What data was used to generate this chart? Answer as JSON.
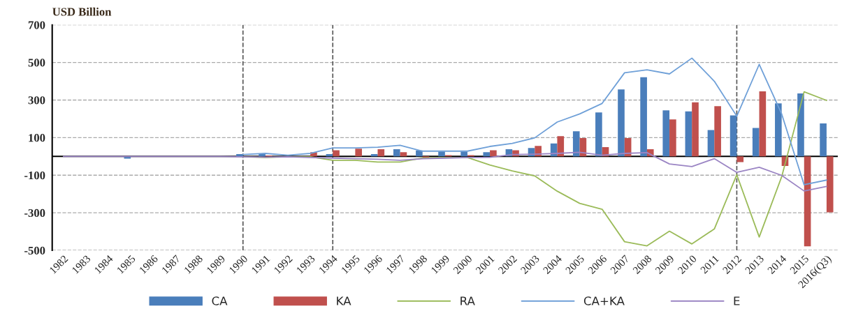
{
  "chart_data": {
    "type": "bar",
    "ylabel": "USD Billion",
    "categories": [
      "1982",
      "1983",
      "1984",
      "1985",
      "1986",
      "1987",
      "1988",
      "1989",
      "1990",
      "1991",
      "1992",
      "1993",
      "1994",
      "1995",
      "1996",
      "1997",
      "1998",
      "1999",
      "2000",
      "2001",
      "2002",
      "2003",
      "2004",
      "2005",
      "2006",
      "2007",
      "2008",
      "2009",
      "2010",
      "2011",
      "2012",
      "2013",
      "2014",
      "2015",
      "2016(Q3)"
    ],
    "series": [
      {
        "name": "CA",
        "color": "#4a7ebb",
        "values": [
          null,
          null,
          null,
          -12,
          null,
          null,
          null,
          null,
          12,
          13,
          null,
          null,
          12,
          null,
          12,
          38,
          32,
          26,
          26,
          22,
          38,
          45,
          69,
          134,
          234,
          356,
          421,
          245,
          240,
          140,
          218,
          151,
          282,
          335,
          176
        ]
      },
      {
        "name": "KA",
        "color": "#c0504d",
        "values": [
          null,
          null,
          null,
          null,
          null,
          null,
          null,
          null,
          null,
          5,
          null,
          22,
          33,
          41,
          38,
          22,
          -6,
          7,
          7,
          33,
          33,
          56,
          108,
          98,
          49,
          98,
          38,
          197,
          288,
          267,
          -30,
          346,
          -51,
          -479,
          -298
        ]
      },
      {
        "name": "RA",
        "type": "line",
        "color": "#9bbb59",
        "values": [
          null,
          null,
          null,
          null,
          null,
          null,
          null,
          null,
          -2,
          -6,
          -2,
          -2,
          -21,
          -21,
          -30,
          -30,
          -9,
          -6,
          -6,
          -46,
          -77,
          -104,
          -185,
          -250,
          -281,
          -454,
          -476,
          -398,
          -466,
          -386,
          -98,
          -429,
          -108,
          344,
          298
        ]
      },
      {
        "name": "CA+KA",
        "type": "line",
        "color": "#6fa0d8",
        "values": [
          null,
          null,
          null,
          null,
          null,
          null,
          null,
          null,
          10,
          16,
          6,
          16,
          45,
          45,
          49,
          59,
          28,
          28,
          28,
          53,
          69,
          99,
          183,
          226,
          282,
          445,
          461,
          439,
          523,
          400,
          214,
          490,
          226,
          -151,
          -126
        ]
      },
      {
        "name": "E",
        "type": "line",
        "color": "#9b85c4",
        "values": [
          0,
          0,
          0,
          0,
          0,
          0,
          0,
          0,
          -2,
          -4,
          -2,
          -6,
          -9,
          -12,
          -15,
          -21,
          -12,
          -9,
          -6,
          -5,
          10,
          12,
          16,
          22,
          6,
          16,
          20,
          -40,
          -54,
          -12,
          -85,
          -58,
          -101,
          -184,
          -160
        ]
      }
    ],
    "ylim": [
      -500,
      700
    ],
    "yticks": [
      -500,
      -300,
      -100,
      100,
      300,
      500,
      700
    ],
    "ref_lines": [
      {
        "axis": "y",
        "value": 0,
        "color": "#000000",
        "line_style": "solid"
      },
      {
        "axis": "x",
        "value": "1990",
        "color": "#555555",
        "line_style": "dashed"
      },
      {
        "axis": "x",
        "value": "1994",
        "color": "#555555",
        "line_style": "dashed"
      },
      {
        "axis": "x",
        "value": "2012",
        "color": "#555555",
        "line_style": "dashed"
      }
    ],
    "grid": "y",
    "legend": "bottom"
  }
}
